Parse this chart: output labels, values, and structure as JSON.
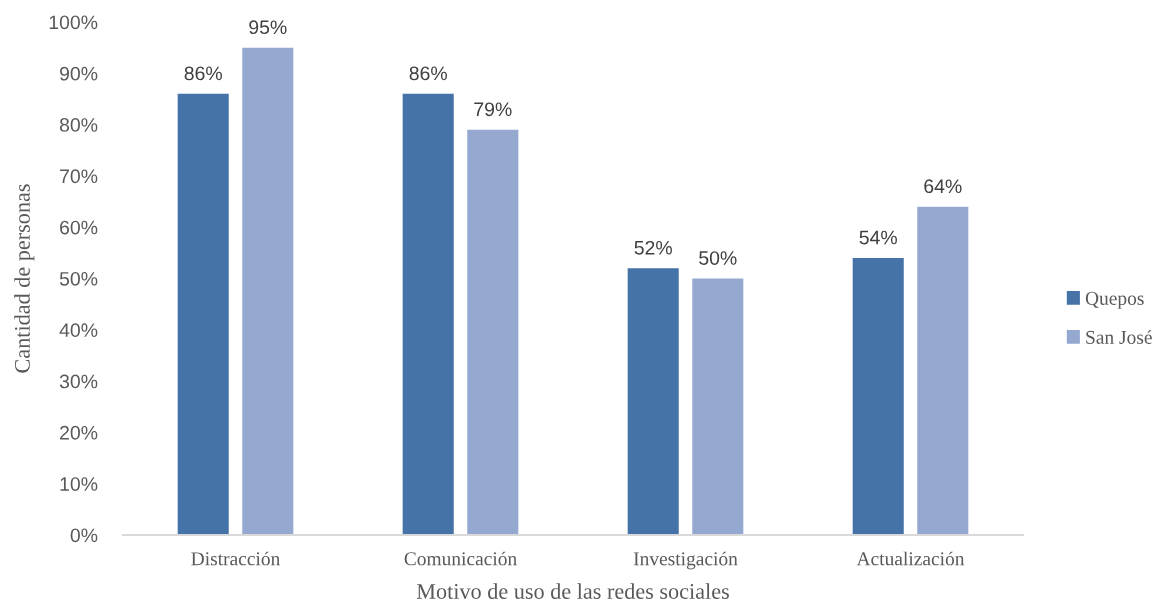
{
  "chart_data": {
    "type": "bar",
    "xlabel": "Motivo de uso de las redes sociales",
    "ylabel": "Cantidad de personas",
    "categories": [
      "Distracción",
      "Comunicación",
      "Investigación",
      "Actualización"
    ],
    "series": [
      {
        "name": "Quepos",
        "color": "#4572a7",
        "values": [
          86,
          86,
          52,
          54
        ],
        "value_labels": [
          "86%",
          "86%",
          "52%",
          "54%"
        ]
      },
      {
        "name": "San José",
        "color": "#95a9d0",
        "values": [
          95,
          79,
          50,
          64
        ],
        "value_labels": [
          "95%",
          "79%",
          "50%",
          "64%"
        ]
      }
    ],
    "ylim": [
      0,
      100
    ],
    "yticks": [
      {
        "value": 0,
        "label": "0%"
      },
      {
        "value": 10,
        "label": "10%"
      },
      {
        "value": 20,
        "label": "20%"
      },
      {
        "value": 30,
        "label": "30%"
      },
      {
        "value": 40,
        "label": "40%"
      },
      {
        "value": 50,
        "label": "50%"
      },
      {
        "value": 60,
        "label": "60%"
      },
      {
        "value": 70,
        "label": "70%"
      },
      {
        "value": 80,
        "label": "80%"
      },
      {
        "value": 90,
        "label": "90%"
      },
      {
        "value": 100,
        "label": "100%"
      }
    ],
    "legend": "right"
  }
}
